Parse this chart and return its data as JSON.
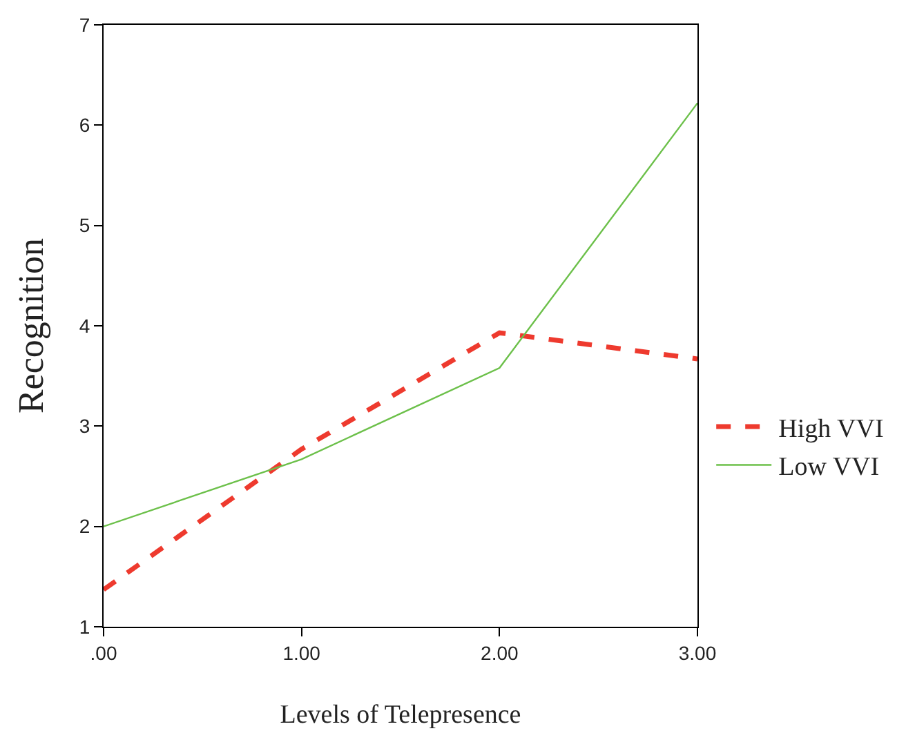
{
  "chart_data": {
    "type": "line",
    "xlabel": "Levels of Telepresence",
    "ylabel": "Recognition",
    "x": [
      0,
      1,
      2,
      3
    ],
    "series": [
      {
        "name": "High VVI",
        "color": "#ee3a2e",
        "line_style": "dashed",
        "values": [
          1.37,
          2.77,
          3.93,
          3.67
        ]
      },
      {
        "name": "Low VVI",
        "color": "#6cc04a",
        "line_style": "solid",
        "values": [
          2.0,
          2.67,
          3.58,
          6.22
        ]
      }
    ],
    "xlim": [
      0,
      3
    ],
    "xticks": [
      {
        "value": 0,
        "label": ".00"
      },
      {
        "value": 1,
        "label": "1.00"
      },
      {
        "value": 2,
        "label": "2.00"
      },
      {
        "value": 3,
        "label": "3.00"
      }
    ],
    "ylim": [
      1,
      7
    ],
    "yticks": [
      1,
      2,
      3,
      4,
      5,
      6,
      7
    ],
    "legend": "right",
    "marker": "none"
  }
}
